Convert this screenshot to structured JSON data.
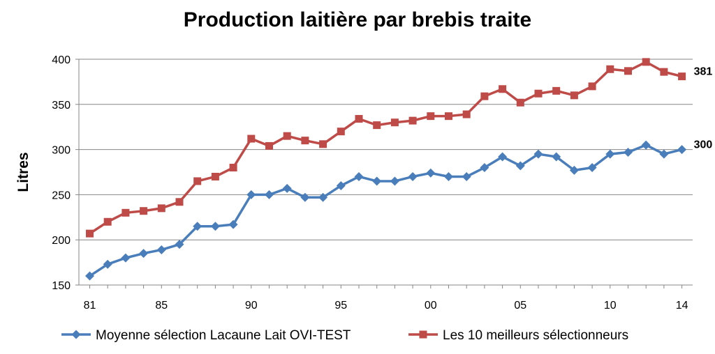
{
  "chart_data": {
    "type": "line",
    "title": "Production laitière par brebis traite",
    "xlabel": "",
    "ylabel": "Litres",
    "x": [
      "81",
      "82",
      "83",
      "84",
      "85",
      "86",
      "87",
      "88",
      "89",
      "90",
      "91",
      "92",
      "93",
      "94",
      "95",
      "96",
      "97",
      "98",
      "99",
      "00",
      "01",
      "02",
      "03",
      "04",
      "05",
      "06",
      "07",
      "08",
      "09",
      "10",
      "11",
      "12",
      "13",
      "14"
    ],
    "x_tick_labels": [
      "81",
      "85",
      "90",
      "95",
      "00",
      "05",
      "10",
      "14"
    ],
    "y_ticks": [
      "150",
      "200",
      "250",
      "300",
      "350",
      "400"
    ],
    "ylim": [
      150,
      400
    ],
    "grid": true,
    "legend_position": "bottom",
    "series": [
      {
        "name": "Moyenne sélection Lacaune Lait OVI-TEST",
        "color": "#4a7ebb",
        "marker": "diamond",
        "values": [
          160,
          173,
          180,
          185,
          189,
          195,
          215,
          215,
          217,
          250,
          250,
          257,
          247,
          247,
          260,
          270,
          265,
          265,
          270,
          274,
          270,
          270,
          280,
          292,
          282,
          295,
          292,
          277,
          280,
          295,
          297,
          305,
          295,
          300
        ],
        "end_label": "300"
      },
      {
        "name": "Les 10 meilleurs sélectionneurs",
        "color": "#be4b48",
        "marker": "square",
        "values": [
          207,
          220,
          230,
          232,
          235,
          242,
          265,
          270,
          280,
          312,
          304,
          315,
          310,
          306,
          320,
          334,
          327,
          330,
          332,
          337,
          337,
          339,
          359,
          367,
          352,
          362,
          365,
          360,
          370,
          389,
          387,
          397,
          386,
          381
        ],
        "end_label": "381"
      }
    ]
  }
}
